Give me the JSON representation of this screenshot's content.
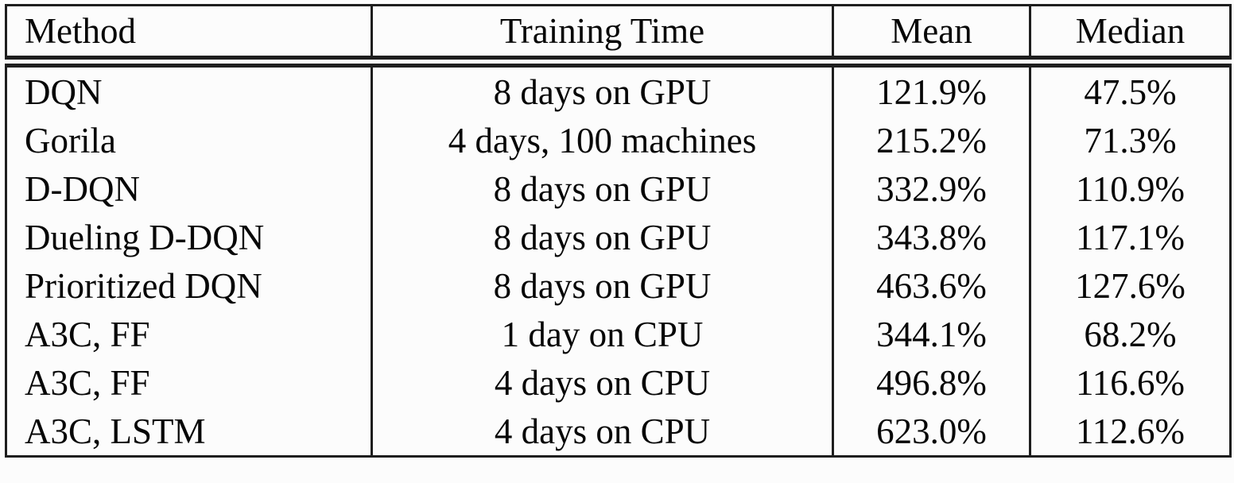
{
  "table": {
    "headers": [
      "Method",
      "Training Time",
      "Mean",
      "Median"
    ],
    "rows": [
      [
        "DQN",
        "8 days on GPU",
        "121.9%",
        "47.5%"
      ],
      [
        "Gorila",
        "4 days, 100 machines",
        "215.2%",
        "71.3%"
      ],
      [
        "D-DQN",
        "8 days on GPU",
        "332.9%",
        "110.9%"
      ],
      [
        "Dueling D-DQN",
        "8 days on GPU",
        "343.8%",
        "117.1%"
      ],
      [
        "Prioritized DQN",
        "8 days on GPU",
        "463.6%",
        "127.6%"
      ],
      [
        "A3C, FF",
        "1 day on CPU",
        "344.1%",
        "68.2%"
      ],
      [
        "A3C, FF",
        "4 days on CPU",
        "496.8%",
        "116.6%"
      ],
      [
        "A3C, LSTM",
        "4 days on CPU",
        "623.0%",
        "112.6%"
      ]
    ]
  },
  "colors": {
    "border": "#1e1e1e",
    "text": "#070707",
    "background": "#fcfcfc"
  },
  "chart_data": {
    "type": "table",
    "columns": [
      "Method",
      "Training Time",
      "Mean",
      "Median"
    ],
    "rows": [
      {
        "method": "DQN",
        "training_time": "8 days on GPU",
        "mean_pct": 121.9,
        "median_pct": 47.5
      },
      {
        "method": "Gorila",
        "training_time": "4 days, 100 machines",
        "mean_pct": 215.2,
        "median_pct": 71.3
      },
      {
        "method": "D-DQN",
        "training_time": "8 days on GPU",
        "mean_pct": 332.9,
        "median_pct": 110.9
      },
      {
        "method": "Dueling D-DQN",
        "training_time": "8 days on GPU",
        "mean_pct": 343.8,
        "median_pct": 117.1
      },
      {
        "method": "Prioritized DQN",
        "training_time": "8 days on GPU",
        "mean_pct": 463.6,
        "median_pct": 127.6
      },
      {
        "method": "A3C, FF",
        "training_time": "1 day on CPU",
        "mean_pct": 344.1,
        "median_pct": 68.2
      },
      {
        "method": "A3C, FF",
        "training_time": "4 days on CPU",
        "mean_pct": 496.8,
        "median_pct": 116.6
      },
      {
        "method": "A3C, LSTM",
        "training_time": "4 days on CPU",
        "mean_pct": 623.0,
        "median_pct": 112.6
      }
    ]
  }
}
